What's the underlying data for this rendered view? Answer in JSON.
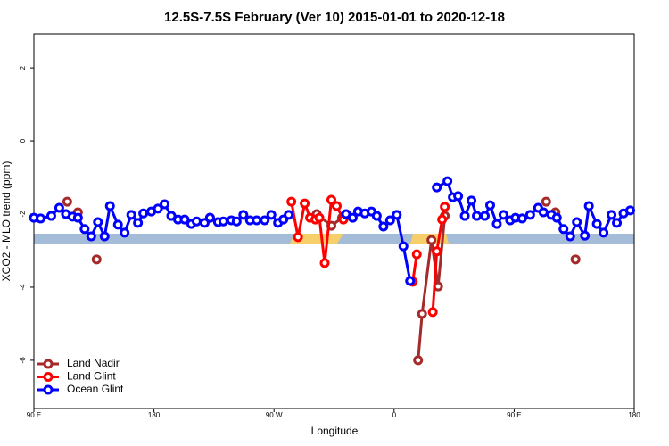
{
  "chart_data": {
    "type": "line",
    "title": "12.5S-7.5S February (Ver 10)   2015-01-01 to 2020-12-18",
    "x_label": "Longitude",
    "y_label": "XCO2 - MLO trend (ppm)",
    "xlim": [
      90,
      540
    ],
    "ylim": [
      -7.32,
      2.93
    ],
    "xticks": [
      {
        "value": 90,
        "label": "90 E"
      },
      {
        "value": 180,
        "label": "180"
      },
      {
        "value": 270,
        "label": "90 W"
      },
      {
        "value": 360,
        "label": "0"
      },
      {
        "value": 450,
        "label": "90 E"
      },
      {
        "value": 540,
        "label": "180"
      }
    ],
    "yticks": [
      2,
      0,
      -2,
      -4,
      -6
    ],
    "legend": "bottom-left",
    "series": [
      {
        "name": "Land Nadir",
        "color": "#a52a2a",
        "x": [
          115,
          123,
          137,
          302,
          313,
          321,
          378,
          381,
          388,
          393,
          398,
          474,
          481,
          496
        ],
        "values": [
          -1.66,
          -1.95,
          -3.24,
          -2.0,
          -2.32,
          -2.1,
          -6.0,
          -4.73,
          -2.71,
          -3.98,
          -2.05,
          -1.66,
          -1.95,
          -3.24
        ],
        "connect": [
          false,
          false,
          false,
          true,
          true,
          false,
          true,
          true,
          true,
          true,
          false,
          false,
          false,
          false
        ]
      },
      {
        "name": "Land Glint",
        "color": "#ff0000",
        "x": [
          222,
          283,
          288,
          293,
          297,
          301,
          304,
          308,
          313,
          317,
          322,
          374,
          377,
          389,
          392,
          396,
          398
        ],
        "values": [
          -2.1,
          -1.66,
          -2.63,
          -1.71,
          -2.1,
          -2.15,
          -2.1,
          -3.34,
          -1.61,
          -1.78,
          -2.15,
          -3.85,
          -3.1,
          -4.68,
          -3.02,
          -2.15,
          -1.8
        ],
        "connect": [
          false,
          true,
          true,
          true,
          true,
          true,
          true,
          true,
          true,
          true,
          false,
          true,
          false,
          true,
          true,
          true,
          false
        ]
      },
      {
        "name": "Ocean Glint",
        "color": "#0000ff",
        "x": [
          90,
          95,
          103,
          109,
          114,
          119,
          123,
          128,
          133,
          138,
          143,
          147,
          153,
          158,
          163,
          168,
          172,
          178,
          183,
          188,
          193,
          198,
          203,
          208,
          212,
          218,
          222,
          228,
          232,
          238,
          242,
          247,
          252,
          257,
          263,
          268,
          273,
          277,
          281,
          324,
          329,
          333,
          338,
          343,
          347,
          352,
          357,
          362,
          367,
          372,
          392,
          400,
          404,
          408,
          413,
          418,
          422,
          428,
          432,
          437,
          442,
          447,
          451,
          456,
          462,
          468,
          472,
          478,
          482,
          487,
          492,
          497,
          503,
          506,
          512,
          517,
          523,
          527,
          532,
          537
        ],
        "values": [
          -2.1,
          -2.12,
          -2.05,
          -1.83,
          -2.0,
          -2.07,
          -2.1,
          -2.41,
          -2.61,
          -2.22,
          -2.61,
          -1.78,
          -2.29,
          -2.51,
          -2.02,
          -2.24,
          -1.98,
          -1.93,
          -1.85,
          -1.73,
          -2.05,
          -2.15,
          -2.15,
          -2.27,
          -2.2,
          -2.24,
          -2.1,
          -2.22,
          -2.2,
          -2.17,
          -2.2,
          -2.02,
          -2.17,
          -2.17,
          -2.17,
          -2.02,
          -2.24,
          -2.15,
          -2.02,
          -2.0,
          -2.1,
          -1.93,
          -1.98,
          -1.93,
          -2.05,
          -2.34,
          -2.17,
          -2.02,
          -2.88,
          -3.83,
          -1.27,
          -1.1,
          -1.54,
          -1.51,
          -2.05,
          -1.63,
          -2.05,
          -2.05,
          -1.76,
          -2.27,
          -2.02,
          -2.17,
          -2.1,
          -2.12,
          -2.02,
          -1.83,
          -1.95,
          -2.02,
          -2.1,
          -2.41,
          -2.61,
          -2.22,
          -2.59,
          -1.78,
          -2.27,
          -2.51,
          -2.02,
          -2.24,
          -1.98,
          -1.9
        ],
        "connect": [
          true,
          true,
          true,
          true,
          true,
          true,
          true,
          true,
          true,
          true,
          true,
          true,
          true,
          true,
          true,
          true,
          true,
          true,
          true,
          true,
          true,
          true,
          true,
          true,
          true,
          true,
          true,
          true,
          true,
          true,
          true,
          true,
          true,
          true,
          true,
          true,
          true,
          true,
          false,
          true,
          true,
          true,
          true,
          true,
          true,
          true,
          true,
          true,
          true,
          false,
          true,
          true,
          true,
          true,
          true,
          true,
          true,
          true,
          true,
          true,
          true,
          true,
          true,
          true,
          true,
          true,
          true,
          true,
          true,
          true,
          true,
          true,
          true,
          true,
          true,
          true,
          true,
          true,
          true,
          false
        ]
      }
    ]
  }
}
